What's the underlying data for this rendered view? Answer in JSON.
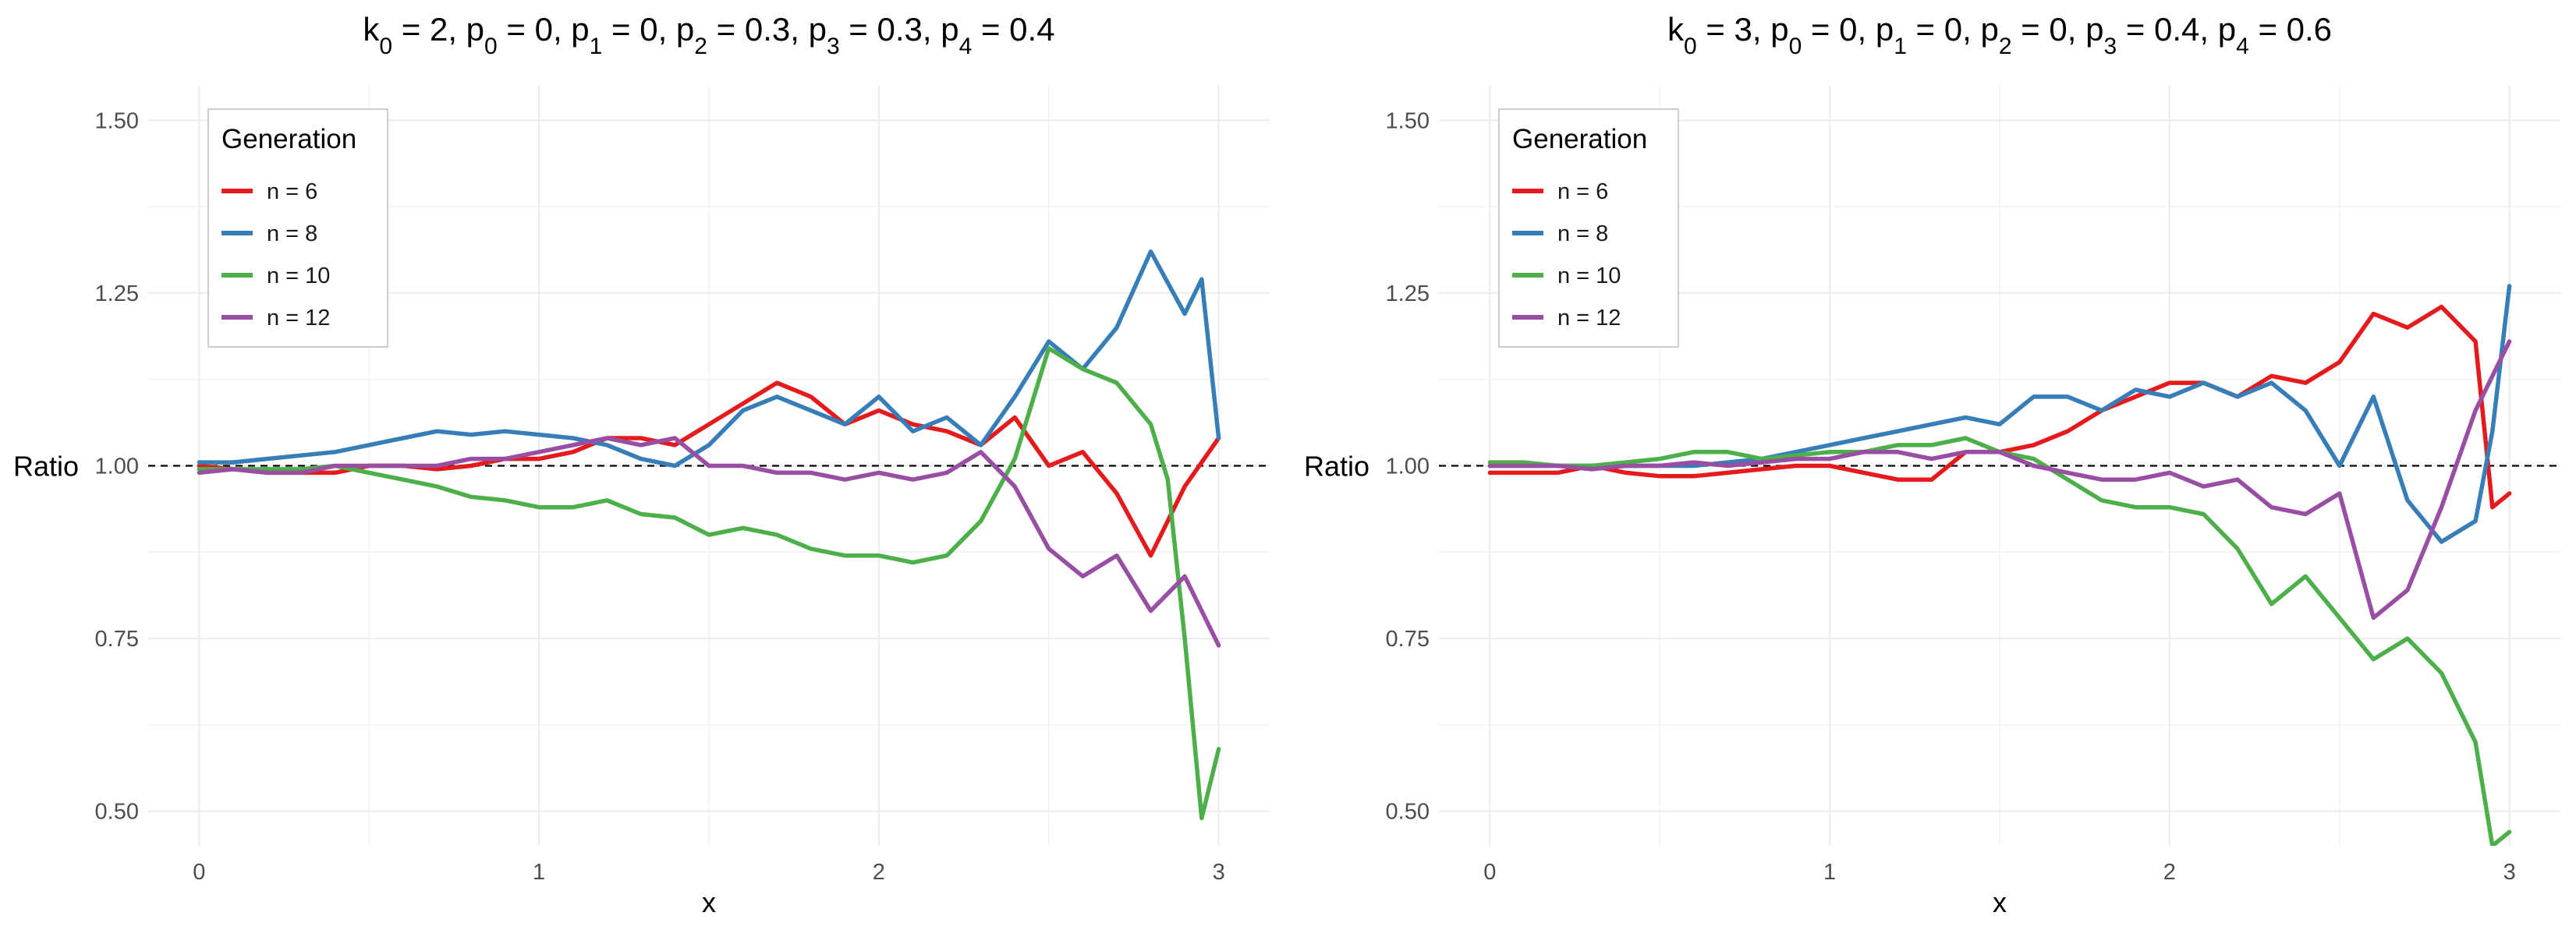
{
  "chart_data": [
    {
      "type": "line",
      "title": "k0 = 2, p0 = 0, p1 = 0, p2 = 0.3, p3 = 0.3, p4 = 0.4",
      "title_parts": [
        {
          "base": "k",
          "sub": "0",
          "value": "2"
        },
        {
          "base": "p",
          "sub": "0",
          "value": "0"
        },
        {
          "base": "p",
          "sub": "1",
          "value": "0"
        },
        {
          "base": "p",
          "sub": "2",
          "value": "0.3"
        },
        {
          "base": "p",
          "sub": "3",
          "value": "0.3"
        },
        {
          "base": "p",
          "sub": "4",
          "value": "0.4"
        }
      ],
      "xlabel": "x",
      "ylabel": "Ratio",
      "xlim": [
        -0.15,
        3.15
      ],
      "ylim": [
        0.45,
        1.55
      ],
      "x_ticks": [
        0,
        1,
        2,
        3
      ],
      "x_tick_labels": [
        "0",
        "1",
        "2",
        "3"
      ],
      "y_ticks": [
        0.5,
        0.75,
        1.0,
        1.25,
        1.5
      ],
      "y_tick_labels": [
        "0.50",
        "0.75",
        "1.00",
        "1.25",
        "1.50"
      ],
      "reference_line": 1.0,
      "grid": true,
      "legend": {
        "title": "Generation",
        "position": "top-left"
      },
      "series": [
        {
          "name": "n = 6",
          "color": "#E41A1C",
          "x": [
            0,
            0.1,
            0.2,
            0.3,
            0.4,
            0.5,
            0.6,
            0.7,
            0.8,
            0.9,
            1.0,
            1.1,
            1.2,
            1.3,
            1.4,
            1.5,
            1.6,
            1.7,
            1.8,
            1.9,
            2.0,
            2.1,
            2.2,
            2.3,
            2.4,
            2.5,
            2.6,
            2.7,
            2.8,
            2.9,
            3.0
          ],
          "y": [
            1.0,
            0.995,
            0.99,
            0.99,
            0.99,
            1.0,
            1.0,
            0.995,
            1.0,
            1.01,
            1.01,
            1.02,
            1.04,
            1.04,
            1.03,
            1.06,
            1.09,
            1.12,
            1.1,
            1.06,
            1.08,
            1.06,
            1.05,
            1.03,
            1.07,
            1.0,
            1.02,
            0.96,
            0.87,
            0.97,
            1.04
          ]
        },
        {
          "name": "n = 8",
          "color": "#377EB8",
          "x": [
            0,
            0.1,
            0.2,
            0.3,
            0.4,
            0.5,
            0.6,
            0.7,
            0.8,
            0.9,
            1.0,
            1.1,
            1.2,
            1.3,
            1.4,
            1.5,
            1.6,
            1.7,
            1.8,
            1.9,
            2.0,
            2.1,
            2.2,
            2.3,
            2.4,
            2.5,
            2.6,
            2.7,
            2.8,
            2.9,
            2.95,
            3.0
          ],
          "y": [
            1.005,
            1.005,
            1.01,
            1.015,
            1.02,
            1.03,
            1.04,
            1.05,
            1.045,
            1.05,
            1.045,
            1.04,
            1.03,
            1.01,
            1.0,
            1.03,
            1.08,
            1.1,
            1.08,
            1.06,
            1.1,
            1.05,
            1.07,
            1.03,
            1.1,
            1.18,
            1.14,
            1.2,
            1.31,
            1.22,
            1.27,
            1.04
          ]
        },
        {
          "name": "n = 10",
          "color": "#4DAF4A",
          "x": [
            0,
            0.1,
            0.2,
            0.3,
            0.4,
            0.5,
            0.6,
            0.7,
            0.8,
            0.9,
            1.0,
            1.1,
            1.2,
            1.3,
            1.4,
            1.5,
            1.6,
            1.7,
            1.8,
            1.9,
            2.0,
            2.1,
            2.2,
            2.3,
            2.4,
            2.5,
            2.6,
            2.7,
            2.8,
            2.85,
            2.9,
            2.95,
            3.0
          ],
          "y": [
            0.995,
            0.995,
            0.995,
            0.995,
            1.0,
            0.99,
            0.98,
            0.97,
            0.955,
            0.95,
            0.94,
            0.94,
            0.95,
            0.93,
            0.925,
            0.9,
            0.91,
            0.9,
            0.88,
            0.87,
            0.87,
            0.86,
            0.87,
            0.92,
            1.01,
            1.17,
            1.14,
            1.12,
            1.06,
            0.98,
            0.75,
            0.49,
            0.59
          ]
        },
        {
          "name": "n = 12",
          "color": "#984EA3",
          "x": [
            0,
            0.1,
            0.2,
            0.3,
            0.4,
            0.5,
            0.6,
            0.7,
            0.8,
            0.9,
            1.0,
            1.1,
            1.2,
            1.3,
            1.4,
            1.5,
            1.6,
            1.7,
            1.8,
            1.9,
            2.0,
            2.1,
            2.2,
            2.3,
            2.4,
            2.5,
            2.6,
            2.7,
            2.8,
            2.9,
            3.0
          ],
          "y": [
            0.99,
            0.995,
            0.99,
            0.99,
            1.0,
            1.0,
            1.0,
            1.0,
            1.01,
            1.01,
            1.02,
            1.03,
            1.04,
            1.03,
            1.04,
            1.0,
            1.0,
            0.99,
            0.99,
            0.98,
            0.99,
            0.98,
            0.99,
            1.02,
            0.97,
            0.88,
            0.84,
            0.87,
            0.79,
            0.84,
            0.74
          ]
        }
      ]
    },
    {
      "type": "line",
      "title": "k0 = 3, p0 = 0, p1 = 0, p2 = 0, p3 = 0.4, p4 = 0.6",
      "title_parts": [
        {
          "base": "k",
          "sub": "0",
          "value": "3"
        },
        {
          "base": "p",
          "sub": "0",
          "value": "0"
        },
        {
          "base": "p",
          "sub": "1",
          "value": "0"
        },
        {
          "base": "p",
          "sub": "2",
          "value": "0"
        },
        {
          "base": "p",
          "sub": "3",
          "value": "0.4"
        },
        {
          "base": "p",
          "sub": "4",
          "value": "0.6"
        }
      ],
      "xlabel": "x",
      "ylabel": "Ratio",
      "xlim": [
        -0.15,
        3.15
      ],
      "ylim": [
        0.45,
        1.55
      ],
      "x_ticks": [
        0,
        1,
        2,
        3
      ],
      "x_tick_labels": [
        "0",
        "1",
        "2",
        "3"
      ],
      "y_ticks": [
        0.5,
        0.75,
        1.0,
        1.25,
        1.5
      ],
      "y_tick_labels": [
        "0.50",
        "0.75",
        "1.00",
        "1.25",
        "1.50"
      ],
      "reference_line": 1.0,
      "grid": true,
      "legend": {
        "title": "Generation",
        "position": "top-left"
      },
      "series": [
        {
          "name": "n = 6",
          "color": "#E41A1C",
          "x": [
            0,
            0.1,
            0.2,
            0.3,
            0.4,
            0.5,
            0.6,
            0.7,
            0.8,
            0.9,
            1.0,
            1.1,
            1.2,
            1.3,
            1.4,
            1.5,
            1.6,
            1.7,
            1.8,
            1.9,
            2.0,
            2.1,
            2.2,
            2.3,
            2.4,
            2.5,
            2.6,
            2.7,
            2.8,
            2.9,
            2.95,
            3.0
          ],
          "y": [
            0.99,
            0.99,
            0.99,
            1.0,
            0.99,
            0.985,
            0.985,
            0.99,
            0.995,
            1.0,
            1.0,
            0.99,
            0.98,
            0.98,
            1.02,
            1.02,
            1.03,
            1.05,
            1.08,
            1.1,
            1.12,
            1.12,
            1.1,
            1.13,
            1.12,
            1.15,
            1.22,
            1.2,
            1.23,
            1.18,
            0.94,
            0.96
          ]
        },
        {
          "name": "n = 8",
          "color": "#377EB8",
          "x": [
            0,
            0.1,
            0.2,
            0.3,
            0.4,
            0.5,
            0.6,
            0.7,
            0.8,
            0.9,
            1.0,
            1.1,
            1.2,
            1.3,
            1.4,
            1.5,
            1.6,
            1.7,
            1.8,
            1.9,
            2.0,
            2.1,
            2.2,
            2.3,
            2.4,
            2.5,
            2.6,
            2.7,
            2.8,
            2.9,
            2.95,
            3.0
          ],
          "y": [
            1.0,
            1.0,
            1.0,
            1.0,
            1.0,
            1.0,
            1.0,
            1.005,
            1.01,
            1.02,
            1.03,
            1.04,
            1.05,
            1.06,
            1.07,
            1.06,
            1.1,
            1.1,
            1.08,
            1.11,
            1.1,
            1.12,
            1.1,
            1.12,
            1.08,
            1.0,
            1.1,
            0.95,
            0.89,
            0.92,
            1.05,
            1.26
          ]
        },
        {
          "name": "n = 10",
          "color": "#4DAF4A",
          "x": [
            0,
            0.1,
            0.2,
            0.3,
            0.4,
            0.5,
            0.6,
            0.7,
            0.8,
            0.9,
            1.0,
            1.1,
            1.2,
            1.3,
            1.4,
            1.5,
            1.6,
            1.7,
            1.8,
            1.9,
            2.0,
            2.1,
            2.2,
            2.3,
            2.4,
            2.5,
            2.6,
            2.7,
            2.8,
            2.9,
            2.95,
            3.0
          ],
          "y": [
            1.005,
            1.005,
            1.0,
            1.0,
            1.005,
            1.01,
            1.02,
            1.02,
            1.01,
            1.015,
            1.02,
            1.02,
            1.03,
            1.03,
            1.04,
            1.02,
            1.01,
            0.98,
            0.95,
            0.94,
            0.94,
            0.93,
            0.88,
            0.8,
            0.84,
            0.78,
            0.72,
            0.75,
            0.7,
            0.6,
            0.45,
            0.47
          ]
        },
        {
          "name": "n = 12",
          "color": "#984EA3",
          "x": [
            0,
            0.1,
            0.2,
            0.3,
            0.4,
            0.5,
            0.6,
            0.7,
            0.8,
            0.9,
            1.0,
            1.1,
            1.2,
            1.3,
            1.4,
            1.5,
            1.6,
            1.7,
            1.8,
            1.9,
            2.0,
            2.1,
            2.2,
            2.3,
            2.4,
            2.5,
            2.6,
            2.7,
            2.8,
            2.9,
            3.0
          ],
          "y": [
            1.0,
            1.0,
            1.0,
            0.995,
            1.0,
            1.0,
            1.005,
            1.0,
            1.005,
            1.01,
            1.01,
            1.02,
            1.02,
            1.01,
            1.02,
            1.02,
            1.0,
            0.99,
            0.98,
            0.98,
            0.99,
            0.97,
            0.98,
            0.94,
            0.93,
            0.96,
            0.78,
            0.82,
            0.94,
            1.08,
            1.18
          ]
        }
      ]
    }
  ]
}
